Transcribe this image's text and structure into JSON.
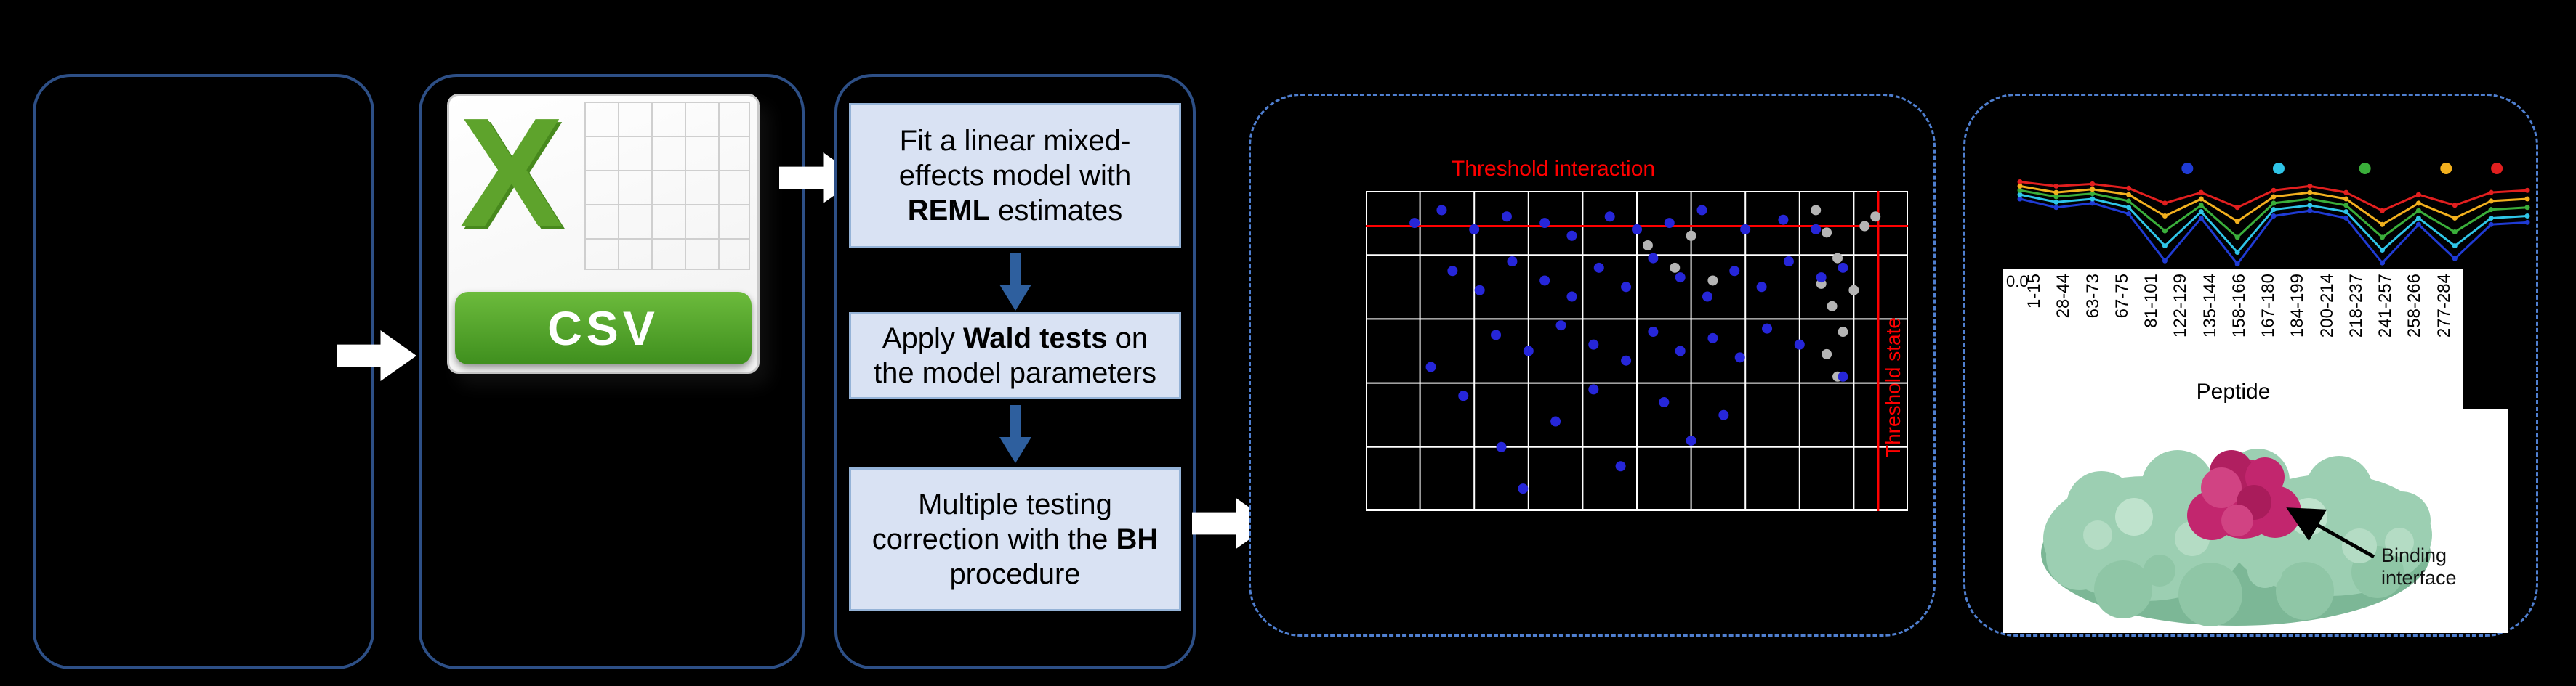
{
  "labels": {
    "csv": "CSV",
    "excel_x": "X",
    "binding_interface": "Binding interface"
  },
  "flow": {
    "steps": [
      {
        "t1": "Fit a linear mixed-effects model with ",
        "b": "REML",
        "t2": " estimates"
      },
      {
        "t1": "Apply ",
        "b": "Wald tests",
        "t2": " on the model parameters"
      },
      {
        "t1": "Multiple testing correction with the ",
        "b": "BH",
        "t2": " procedure"
      }
    ]
  },
  "chart_data": [
    {
      "type": "scatter",
      "grid": {
        "cols": 10,
        "rows": 5
      },
      "thresholds": {
        "horizontal_y": 11,
        "vertical_x": 94.5,
        "horizontal_label": "Threshold interaction",
        "vertical_label": "Threshold state"
      },
      "colors": {
        "blue": "#2626d9",
        "gray": "#b5b5b5",
        "grid": "#ffffff",
        "threshold": "#ff0000"
      },
      "points": {
        "gray": [
          [
            52,
            17
          ],
          [
            57,
            24
          ],
          [
            60,
            14
          ],
          [
            64,
            28
          ],
          [
            83,
            6
          ],
          [
            85,
            13
          ],
          [
            87,
            21
          ],
          [
            84,
            29
          ],
          [
            86,
            36
          ],
          [
            88,
            44
          ],
          [
            85,
            51
          ],
          [
            87,
            58
          ],
          [
            90,
            31
          ],
          [
            92,
            11
          ],
          [
            94,
            8
          ]
        ],
        "blue": [
          [
            9,
            10
          ],
          [
            14,
            6
          ],
          [
            20,
            12
          ],
          [
            26,
            8
          ],
          [
            33,
            10
          ],
          [
            38,
            14
          ],
          [
            45,
            8
          ],
          [
            50,
            12
          ],
          [
            56,
            10
          ],
          [
            62,
            6
          ],
          [
            70,
            12
          ],
          [
            77,
            9
          ],
          [
            83,
            12
          ],
          [
            16,
            25
          ],
          [
            21,
            31
          ],
          [
            27,
            22
          ],
          [
            33,
            28
          ],
          [
            38,
            33
          ],
          [
            43,
            24
          ],
          [
            48,
            30
          ],
          [
            53,
            21
          ],
          [
            58,
            27
          ],
          [
            63,
            33
          ],
          [
            68,
            25
          ],
          [
            73,
            30
          ],
          [
            78,
            22
          ],
          [
            84,
            27
          ],
          [
            88,
            24
          ],
          [
            24,
            45
          ],
          [
            30,
            50
          ],
          [
            36,
            42
          ],
          [
            42,
            48
          ],
          [
            48,
            53
          ],
          [
            53,
            44
          ],
          [
            58,
            50
          ],
          [
            64,
            46
          ],
          [
            69,
            52
          ],
          [
            74,
            43
          ],
          [
            80,
            48
          ],
          [
            12,
            55
          ],
          [
            25,
            80
          ],
          [
            29,
            93
          ],
          [
            35,
            72
          ],
          [
            42,
            62
          ],
          [
            47,
            86
          ],
          [
            55,
            66
          ],
          [
            60,
            78
          ],
          [
            66,
            70
          ],
          [
            88,
            58
          ],
          [
            18,
            64
          ]
        ]
      }
    },
    {
      "type": "line",
      "categories": [
        "1-15",
        "28-44",
        "63-73",
        "67-75",
        "81-101",
        "122-129",
        "135-144",
        "158-166",
        "167-180",
        "184-199",
        "200-214",
        "218-237",
        "241-257",
        "258-266",
        "277-284"
      ],
      "xlabel": "Peptide",
      "y_tick": "0.0",
      "legend_colors": [
        "#1f3bd4",
        "#2fc5e8",
        "#3aae3a",
        "#f2b01e",
        "#e21f1f"
      ],
      "legend_x": [
        33,
        51,
        68,
        84,
        94
      ],
      "series": [
        {
          "name": "series-blue",
          "color": "#1f3bd4",
          "values": [
            0.66,
            0.58,
            0.62,
            0.52,
            0.08,
            0.48,
            0.05,
            0.5,
            0.55,
            0.48,
            0.06,
            0.42,
            0.1,
            0.42,
            0.44
          ]
        },
        {
          "name": "series-cyan",
          "color": "#2fc5e8",
          "values": [
            0.7,
            0.63,
            0.66,
            0.58,
            0.22,
            0.54,
            0.16,
            0.56,
            0.6,
            0.54,
            0.18,
            0.48,
            0.22,
            0.48,
            0.5
          ]
        },
        {
          "name": "series-green",
          "color": "#3aae3a",
          "values": [
            0.74,
            0.68,
            0.71,
            0.64,
            0.36,
            0.6,
            0.3,
            0.62,
            0.66,
            0.6,
            0.3,
            0.55,
            0.35,
            0.56,
            0.58
          ]
        },
        {
          "name": "series-yellow",
          "color": "#f2b01e",
          "values": [
            0.78,
            0.72,
            0.75,
            0.7,
            0.5,
            0.66,
            0.45,
            0.68,
            0.72,
            0.66,
            0.42,
            0.62,
            0.48,
            0.64,
            0.66
          ]
        },
        {
          "name": "series-red",
          "color": "#e21f1f",
          "values": [
            0.82,
            0.78,
            0.8,
            0.76,
            0.62,
            0.72,
            0.58,
            0.74,
            0.78,
            0.72,
            0.55,
            0.7,
            0.6,
            0.72,
            0.74
          ]
        }
      ]
    }
  ]
}
